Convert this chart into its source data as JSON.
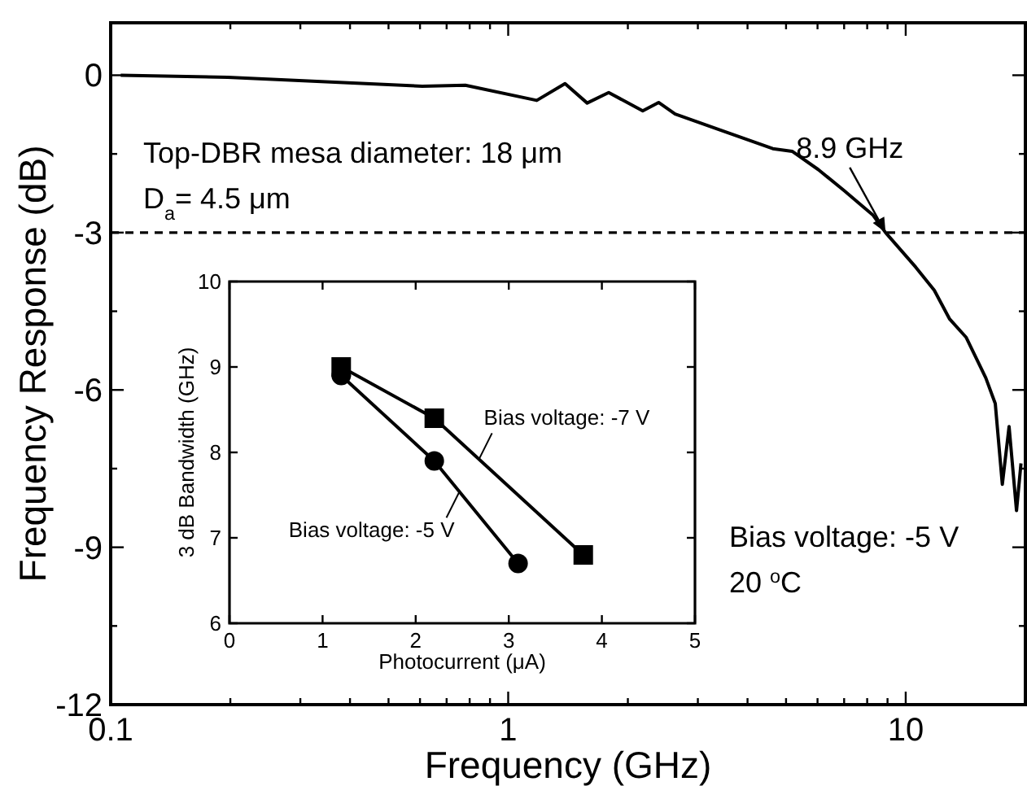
{
  "chart_data": [
    {
      "type": "line",
      "xlabel": "Frequency (GHz)",
      "ylabel": "Frequency Response (dB)",
      "log": "x",
      "color": "#000000",
      "marker": "none",
      "line_style": "solid",
      "xlim": [
        0.1,
        20
      ],
      "ylim": [
        -12,
        1
      ],
      "xticks": [
        0.1,
        {
          "value": 0.2,
          "label": null
        },
        {
          "value": 0.3,
          "label": null
        },
        {
          "value": 0.4,
          "label": null
        },
        {
          "value": 0.5,
          "label": null
        },
        {
          "value": 0.6,
          "label": null
        },
        {
          "value": 0.7,
          "label": null
        },
        {
          "value": 0.8,
          "label": null
        },
        {
          "value": 0.9,
          "label": null
        },
        1,
        {
          "value": 2,
          "label": null
        },
        {
          "value": 3,
          "label": null
        },
        {
          "value": 4,
          "label": null
        },
        {
          "value": 5,
          "label": null
        },
        {
          "value": 6,
          "label": null
        },
        {
          "value": 7,
          "label": null
        },
        {
          "value": 8,
          "label": null
        },
        {
          "value": 9,
          "label": null
        },
        10
      ],
      "yticks": [
        -12,
        {
          "value": -10.5,
          "label": null
        },
        -9,
        {
          "value": -7.5,
          "label": null
        },
        -6,
        {
          "value": -4.5,
          "label": null
        },
        -3,
        {
          "value": -1.5,
          "label": null
        },
        0
      ],
      "x": [
        0.106,
        0.197,
        0.608,
        0.78,
        1.18,
        1.39,
        1.58,
        1.79,
        2.18,
        2.39,
        2.63,
        3.43,
        4.63,
        5.18,
        6.03,
        7.0,
        8.28,
        8.9,
        10.6,
        11.8,
        12.9,
        14.2,
        15.9,
        16.8,
        17.5,
        18.2,
        19.0,
        19.5
      ],
      "values": [
        0,
        -0.04,
        -0.21,
        -0.19,
        -0.48,
        -0.16,
        -0.53,
        -0.33,
        -0.68,
        -0.52,
        -0.74,
        -1.05,
        -1.4,
        -1.45,
        -1.8,
        -2.2,
        -2.67,
        -3.0,
        -3.66,
        -4.1,
        -4.65,
        -5.0,
        -5.77,
        -6.26,
        -7.8,
        -6.7,
        -8.3,
        -7.4
      ],
      "ref_lines": [
        {
          "axis": "y",
          "value": -3,
          "line_style": "dashed",
          "color": "#000000"
        }
      ],
      "annotations": [
        {
          "text": "8.9 GHz",
          "x": 8.9,
          "y": -3
        },
        "Top-DBR mesa diameter: 18 μm",
        "D$_{a}$= 4.5 μm",
        "Bias voltage: -5 V",
        "20 $^{o}$C"
      ]
    },
    {
      "type": "line",
      "xlabel": "Photocurrent (μA)",
      "ylabel": "3 dB Bandwidth (GHz)",
      "line_style": "solid",
      "xlim": [
        0,
        5
      ],
      "ylim": [
        6,
        10
      ],
      "xticks": [
        0,
        1,
        2,
        3,
        4,
        5
      ],
      "yticks": [
        6,
        7,
        8,
        9,
        10
      ],
      "series": [
        {
          "name": "Bias voltage: -7 V",
          "color": "#000000",
          "marker": "square",
          "x": [
            1.2,
            2.2,
            3.8
          ],
          "values": [
            9.0,
            8.4,
            6.8
          ]
        },
        {
          "name": "Bias voltage: -5 V",
          "color": "#000000",
          "marker": "circle",
          "x": [
            1.2,
            2.2,
            3.1
          ],
          "values": [
            8.9,
            7.9,
            6.7
          ]
        }
      ]
    }
  ]
}
